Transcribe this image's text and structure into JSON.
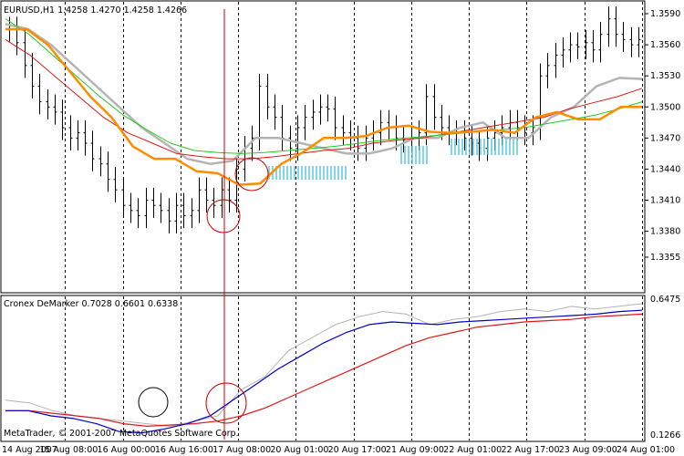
{
  "window": {
    "symbol_header": "EURUSD,H1  1.4258 1.4270 1.4258 1.4266",
    "indicator_header": "Cronex DeMarker 0.7028 0.6601 0.6338",
    "copyright": "MetaTrader, © 2001-2007 MetaQuotes Software Corp."
  },
  "colors": {
    "background": "#ffffff",
    "bars": "#000000",
    "grid": "#000000",
    "gray_ma": "#b4b4b4",
    "red_ma": "#e01818",
    "green_ma": "#22cc22",
    "orange_line": "#ff8c00",
    "cyan_histogram": "#5ac8dc",
    "blue_line": "#0000cc",
    "marker_red": "#cc0000",
    "marker_black": "#000000"
  },
  "chart_data": [
    {
      "type": "line",
      "title": "EURUSD,H1",
      "y_ticks": [
        "1.3590",
        "1.3560",
        "1.3530",
        "1.3500",
        "1.3470",
        "1.3440",
        "1.3410",
        "1.3380",
        "1.3355"
      ],
      "x_ticks": [
        "14 Aug 2007",
        "15 Aug 08:00",
        "16 Aug 00:00",
        "16 Aug 16:00",
        "17 Aug 08:00",
        "20 Aug 01:00",
        "20 Aug 17:00",
        "21 Aug 09:00",
        "22 Aug 01:00",
        "22 Aug 17:00",
        "23 Aug 09:00",
        "24 Aug 01:00"
      ],
      "close": [
        1.3575,
        1.3562,
        1.354,
        1.352,
        1.3505,
        1.35,
        1.3495,
        1.348,
        1.347,
        1.3475,
        1.3465,
        1.345,
        1.3445,
        1.343,
        1.342,
        1.3405,
        1.34,
        1.3395,
        1.341,
        1.3405,
        1.34,
        1.339,
        1.3405,
        1.3395,
        1.34,
        1.342,
        1.341,
        1.3405,
        1.342,
        1.341,
        1.344,
        1.346,
        1.347,
        1.352,
        1.35,
        1.349,
        1.347,
        1.346,
        1.348,
        1.349,
        1.3495,
        1.35,
        1.3498,
        1.348,
        1.3475,
        1.347,
        1.346,
        1.347,
        1.3475,
        1.3485,
        1.348,
        1.347,
        1.3468,
        1.347,
        1.3475,
        1.351,
        1.349,
        1.348,
        1.3475,
        1.3475,
        1.347,
        1.3465,
        1.346,
        1.347,
        1.3475,
        1.348,
        1.3485,
        1.348,
        1.3475,
        1.348,
        1.353,
        1.354,
        1.355,
        1.3555,
        1.356,
        1.3558,
        1.3562,
        1.3555,
        1.357,
        1.3585,
        1.357,
        1.3565,
        1.356,
        1.3565
      ],
      "series": [
        {
          "values": [
            1.358,
            1.3575,
            1.356,
            1.354,
            1.352,
            1.35,
            1.348,
            1.3465,
            1.345,
            1.3445,
            1.3448,
            1.347,
            1.347,
            1.3465,
            1.346,
            1.3455,
            1.3455,
            1.346,
            1.347,
            1.347,
            1.348,
            1.3485,
            1.347,
            1.347,
            1.349,
            1.35,
            1.352,
            1.3528,
            1.3527
          ]
        },
        {
          "values": [
            1.3565,
            1.355,
            1.353,
            1.351,
            1.349,
            1.3475,
            1.3465,
            1.3455,
            1.3452,
            1.345,
            1.345,
            1.3452,
            1.3455,
            1.3458,
            1.346,
            1.3465,
            1.3468,
            1.347,
            1.3474,
            1.3478,
            1.3482,
            1.3486,
            1.349,
            1.3498,
            1.3504,
            1.351,
            1.3518
          ]
        },
        {
          "values": [
            1.3585,
            1.357,
            1.355,
            1.353,
            1.351,
            1.3492,
            1.3478,
            1.3465,
            1.3458,
            1.3456,
            1.3455,
            1.3456,
            1.3458,
            1.346,
            1.3462,
            1.3465,
            1.3468,
            1.347,
            1.3472,
            1.3474,
            1.3476,
            1.3478,
            1.348,
            1.3484,
            1.3488,
            1.3492,
            1.3498,
            1.3505
          ]
        },
        {
          "values": [
            1.3575,
            1.3575,
            1.356,
            1.3535,
            1.351,
            1.349,
            1.3462,
            1.345,
            1.345,
            1.3438,
            1.3436,
            1.3425,
            1.3426,
            1.3445,
            1.3456,
            1.347,
            1.347,
            1.3472,
            1.348,
            1.3482,
            1.3476,
            1.3475,
            1.3476,
            1.3478,
            1.3475,
            1.349,
            1.3495,
            1.3488,
            1.3488,
            1.35,
            1.35
          ]
        }
      ]
    },
    {
      "type": "line",
      "title": "Cronex DeMarker",
      "y_ticks": [
        "0.6475",
        "0.1266"
      ],
      "series": [
        {
          "values": [
            0.22,
            0.22,
            0.2,
            0.19,
            0.17,
            0.14,
            0.135,
            0.15,
            0.17,
            0.2,
            0.26,
            0.32,
            0.38,
            0.43,
            0.48,
            0.52,
            0.55,
            0.56,
            0.555,
            0.55,
            0.56,
            0.565,
            0.57,
            0.575,
            0.58,
            0.585,
            0.59,
            0.6,
            0.605
          ]
        },
        {
          "values": [
            0.22,
            0.22,
            0.21,
            0.2,
            0.19,
            0.17,
            0.16,
            0.165,
            0.17,
            0.18,
            0.2,
            0.23,
            0.27,
            0.31,
            0.35,
            0.39,
            0.43,
            0.47,
            0.5,
            0.52,
            0.54,
            0.55,
            0.56,
            0.565,
            0.57,
            0.58,
            0.585,
            0.59
          ]
        },
        {
          "values": [
            0.26,
            0.25,
            0.22,
            0.2,
            0.19,
            0.18,
            0.17,
            0.16,
            0.18,
            0.2,
            0.3,
            0.35,
            0.45,
            0.5,
            0.55,
            0.58,
            0.6,
            0.59,
            0.55,
            0.57,
            0.58,
            0.6,
            0.61,
            0.6,
            0.62,
            0.61,
            0.62,
            0.63
          ]
        }
      ]
    }
  ]
}
